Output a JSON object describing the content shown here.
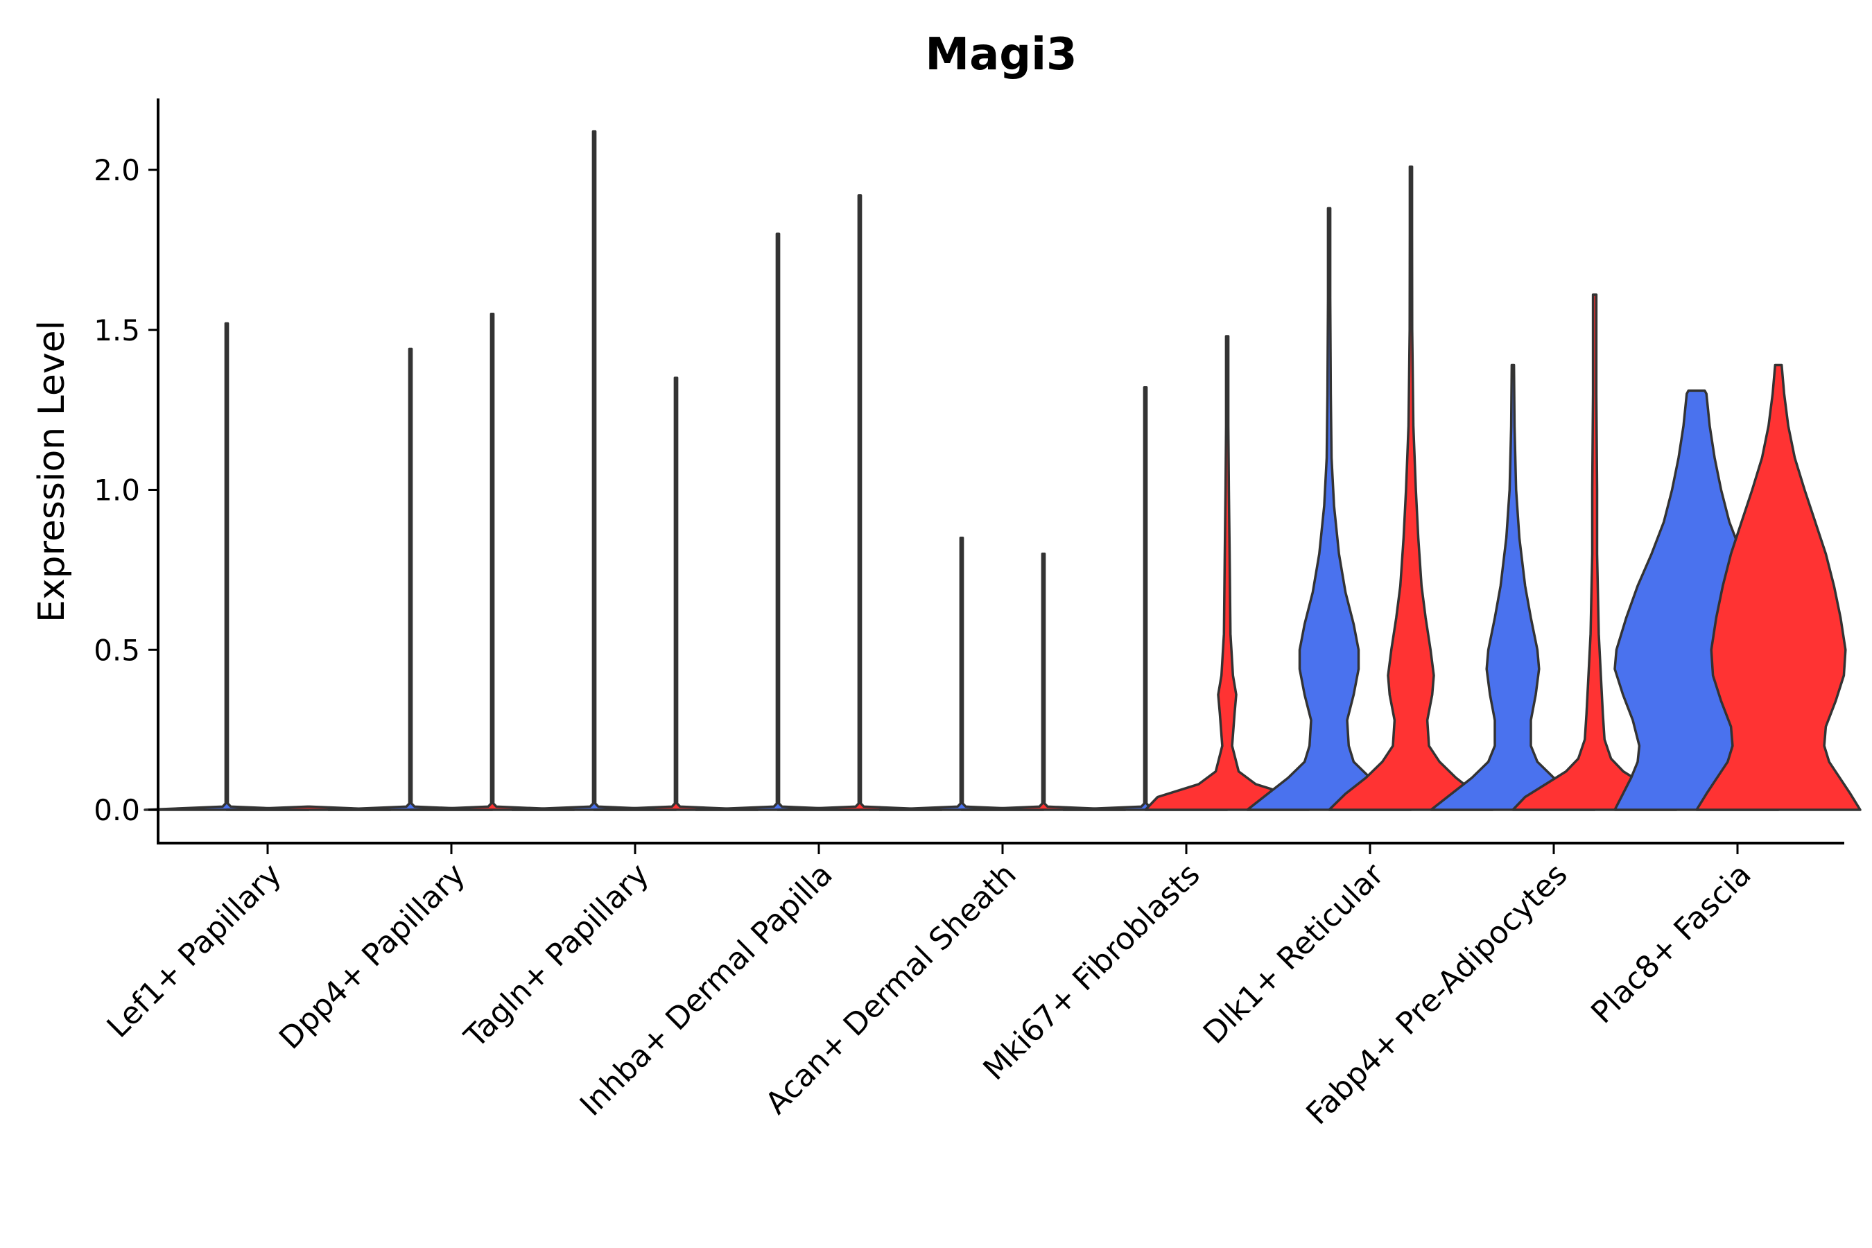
{
  "chart_data": {
    "type": "violin",
    "title": "Magi3",
    "xlabel": "",
    "ylabel": "Expression Level",
    "ylim": [
      -0.1,
      2.2
    ],
    "yticks": [
      "0.0",
      "0.5",
      "1.0",
      "1.5",
      "2.0"
    ],
    "ytick_values": [
      0,
      0.5,
      1.0,
      1.5,
      2.0
    ],
    "grid": false,
    "legend": "none",
    "categories": [
      "Lef1+ Papillary",
      "Dpp4+ Papillary",
      "Tagln+ Papillary",
      "Inhba+ Dermal Papilla",
      "Acan+ Dermal Sheath",
      "Mki67+ Fibroblasts",
      "Dlk1+ Reticular",
      "Fabp4+ Pre-Adipocytes",
      "Plac8+ Fascia"
    ],
    "colors": {
      "blue": "#4a72ee",
      "red": "#ff3333",
      "outline": "#333333"
    },
    "groups": [
      {
        "category": "Lef1+ Papillary",
        "violins": [
          {
            "color": "#4a72ee",
            "max": 1.52,
            "profile": [
              [
                0,
                1.0
              ],
              [
                0.01,
                0.05
              ],
              [
                0.02,
                0
              ],
              [
                1.52,
                0
              ]
            ]
          },
          {
            "color": "#ff3333",
            "max": 0.0,
            "profile": [
              [
                0,
                1.0
              ],
              [
                0.01,
                0
              ]
            ]
          }
        ]
      },
      {
        "category": "Dpp4+ Papillary",
        "violins": [
          {
            "color": "#4a72ee",
            "max": 1.44,
            "profile": [
              [
                0,
                1.0
              ],
              [
                0.01,
                0.05
              ],
              [
                0.02,
                0
              ],
              [
                1.44,
                0
              ]
            ]
          },
          {
            "color": "#ff3333",
            "max": 1.55,
            "profile": [
              [
                0,
                1.0
              ],
              [
                0.01,
                0.05
              ],
              [
                0.02,
                0
              ],
              [
                1.55,
                0
              ]
            ]
          }
        ]
      },
      {
        "category": "Tagln+ Papillary",
        "violins": [
          {
            "color": "#4a72ee",
            "max": 2.12,
            "profile": [
              [
                0,
                1.0
              ],
              [
                0.01,
                0.05
              ],
              [
                0.02,
                0
              ],
              [
                2.12,
                0
              ]
            ]
          },
          {
            "color": "#ff3333",
            "max": 1.35,
            "profile": [
              [
                0,
                1.0
              ],
              [
                0.01,
                0.05
              ],
              [
                0.02,
                0
              ],
              [
                1.35,
                0
              ]
            ]
          }
        ]
      },
      {
        "category": "Inhba+ Dermal Papilla",
        "violins": [
          {
            "color": "#4a72ee",
            "max": 1.8,
            "profile": [
              [
                0,
                1.0
              ],
              [
                0.01,
                0.05
              ],
              [
                0.02,
                0
              ],
              [
                1.8,
                0
              ]
            ]
          },
          {
            "color": "#ff3333",
            "max": 1.92,
            "profile": [
              [
                0,
                1.0
              ],
              [
                0.01,
                0.05
              ],
              [
                0.02,
                0
              ],
              [
                1.92,
                0
              ]
            ]
          }
        ]
      },
      {
        "category": "Acan+ Dermal Sheath",
        "violins": [
          {
            "color": "#4a72ee",
            "max": 0.85,
            "profile": [
              [
                0,
                1.0
              ],
              [
                0.01,
                0.05
              ],
              [
                0.02,
                0
              ],
              [
                0.85,
                0
              ]
            ]
          },
          {
            "color": "#ff3333",
            "max": 0.8,
            "profile": [
              [
                0,
                1.0
              ],
              [
                0.01,
                0.05
              ],
              [
                0.02,
                0
              ],
              [
                0.8,
                0
              ]
            ]
          }
        ]
      },
      {
        "category": "Mki67+ Fibroblasts",
        "violins": [
          {
            "color": "#4a72ee",
            "max": 1.32,
            "profile": [
              [
                0,
                1.0
              ],
              [
                0.01,
                0.05
              ],
              [
                0.02,
                0
              ],
              [
                1.32,
                0
              ]
            ]
          },
          {
            "color": "#ff3333",
            "max": 1.48,
            "profile": [
              [
                0,
                1.0
              ],
              [
                0.04,
                0.85
              ],
              [
                0.08,
                0.35
              ],
              [
                0.12,
                0.14
              ],
              [
                0.2,
                0.06
              ],
              [
                0.3,
                0.09
              ],
              [
                0.36,
                0.11
              ],
              [
                0.42,
                0.07
              ],
              [
                0.55,
                0.04
              ],
              [
                0.8,
                0.03
              ],
              [
                1.0,
                0.02
              ],
              [
                1.2,
                0.01
              ],
              [
                1.48,
                0.005
              ]
            ]
          }
        ]
      },
      {
        "category": "Dlk1+ Reticular",
        "violins": [
          {
            "color": "#4a72ee",
            "max": 1.88,
            "profile": [
              [
                0,
                1.0
              ],
              [
                0.05,
                0.75
              ],
              [
                0.1,
                0.5
              ],
              [
                0.15,
                0.3
              ],
              [
                0.2,
                0.24
              ],
              [
                0.28,
                0.22
              ],
              [
                0.36,
                0.3
              ],
              [
                0.44,
                0.36
              ],
              [
                0.5,
                0.36
              ],
              [
                0.58,
                0.3
              ],
              [
                0.68,
                0.2
              ],
              [
                0.8,
                0.12
              ],
              [
                0.95,
                0.06
              ],
              [
                1.1,
                0.03
              ],
              [
                1.3,
                0.02
              ],
              [
                1.6,
                0.01
              ],
              [
                1.88,
                0.005
              ]
            ]
          },
          {
            "color": "#ff3333",
            "max": 2.01,
            "profile": [
              [
                0,
                1.0
              ],
              [
                0.05,
                0.8
              ],
              [
                0.1,
                0.55
              ],
              [
                0.15,
                0.35
              ],
              [
                0.2,
                0.22
              ],
              [
                0.28,
                0.2
              ],
              [
                0.36,
                0.26
              ],
              [
                0.42,
                0.28
              ],
              [
                0.5,
                0.24
              ],
              [
                0.6,
                0.18
              ],
              [
                0.7,
                0.13
              ],
              [
                0.85,
                0.09
              ],
              [
                1.0,
                0.06
              ],
              [
                1.2,
                0.03
              ],
              [
                1.5,
                0.015
              ],
              [
                1.8,
                0.008
              ],
              [
                2.01,
                0.004
              ]
            ]
          }
        ]
      },
      {
        "category": "Fabp4+ Pre-Adipocytes",
        "violins": [
          {
            "color": "#4a72ee",
            "max": 1.39,
            "profile": [
              [
                0,
                1.0
              ],
              [
                0.05,
                0.75
              ],
              [
                0.1,
                0.5
              ],
              [
                0.15,
                0.3
              ],
              [
                0.2,
                0.22
              ],
              [
                0.28,
                0.22
              ],
              [
                0.36,
                0.28
              ],
              [
                0.44,
                0.32
              ],
              [
                0.5,
                0.3
              ],
              [
                0.6,
                0.22
              ],
              [
                0.7,
                0.15
              ],
              [
                0.85,
                0.08
              ],
              [
                1.0,
                0.04
              ],
              [
                1.2,
                0.02
              ],
              [
                1.39,
                0.005
              ]
            ]
          },
          {
            "color": "#ff3333",
            "max": 1.61,
            "profile": [
              [
                0,
                1.0
              ],
              [
                0.04,
                0.85
              ],
              [
                0.08,
                0.6
              ],
              [
                0.12,
                0.35
              ],
              [
                0.16,
                0.2
              ],
              [
                0.22,
                0.12
              ],
              [
                0.3,
                0.1
              ],
              [
                0.4,
                0.08
              ],
              [
                0.55,
                0.05
              ],
              [
                0.8,
                0.03
              ],
              [
                1.0,
                0.03
              ],
              [
                1.3,
                0.02
              ],
              [
                1.5,
                0.02
              ],
              [
                1.61,
                0.02
              ]
            ]
          }
        ]
      },
      {
        "category": "Plac8+ Fascia",
        "violins": [
          {
            "color": "#4a72ee",
            "max": 1.31,
            "profile": [
              [
                0,
                1.0
              ],
              [
                0.05,
                0.9
              ],
              [
                0.1,
                0.8
              ],
              [
                0.15,
                0.72
              ],
              [
                0.2,
                0.7
              ],
              [
                0.28,
                0.78
              ],
              [
                0.36,
                0.9
              ],
              [
                0.44,
                1.0
              ],
              [
                0.5,
                0.98
              ],
              [
                0.6,
                0.86
              ],
              [
                0.7,
                0.72
              ],
              [
                0.8,
                0.55
              ],
              [
                0.9,
                0.4
              ],
              [
                1.0,
                0.3
              ],
              [
                1.1,
                0.22
              ],
              [
                1.2,
                0.16
              ],
              [
                1.3,
                0.12
              ],
              [
                1.31,
                0.1
              ]
            ]
          },
          {
            "color": "#ff3333",
            "max": 1.39,
            "profile": [
              [
                0,
                1.0
              ],
              [
                0.05,
                0.88
              ],
              [
                0.1,
                0.75
              ],
              [
                0.15,
                0.62
              ],
              [
                0.2,
                0.56
              ],
              [
                0.26,
                0.58
              ],
              [
                0.34,
                0.7
              ],
              [
                0.42,
                0.8
              ],
              [
                0.5,
                0.82
              ],
              [
                0.6,
                0.76
              ],
              [
                0.7,
                0.68
              ],
              [
                0.8,
                0.58
              ],
              [
                0.9,
                0.45
              ],
              [
                1.0,
                0.32
              ],
              [
                1.1,
                0.2
              ],
              [
                1.2,
                0.12
              ],
              [
                1.3,
                0.07
              ],
              [
                1.39,
                0.04
              ]
            ]
          }
        ]
      }
    ]
  }
}
